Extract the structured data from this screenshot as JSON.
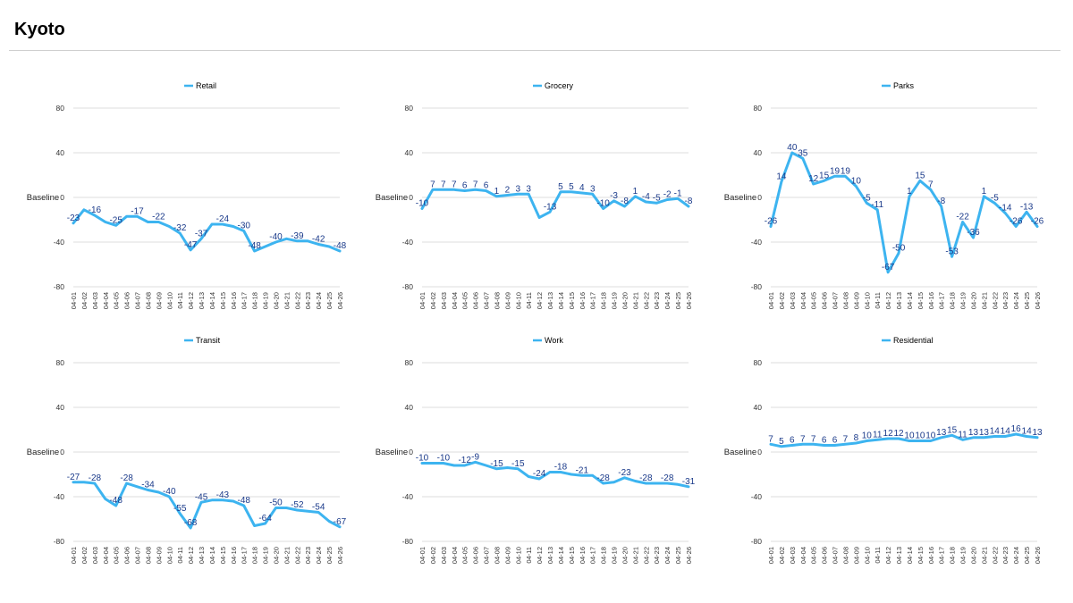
{
  "page": {
    "title": "Kyoto"
  },
  "chart_data": [
    {
      "type": "line",
      "legend": "Retail",
      "ylabel": "Baseline",
      "ylim": [
        -80,
        80
      ],
      "yticks": [
        "80",
        "40",
        "0",
        "-40",
        "-80"
      ],
      "x": [
        "04-01",
        "04-02",
        "04-03",
        "04-04",
        "04-05",
        "04-06",
        "04-07",
        "04-08",
        "04-09",
        "04-10",
        "04-11",
        "04-12",
        "04-13",
        "04-14",
        "04-15",
        "04-16",
        "04-17",
        "04-18",
        "04-19",
        "04-20",
        "04-21",
        "04-22",
        "04-23",
        "04-24",
        "04-25",
        "04-26"
      ],
      "values": [
        -23,
        -11,
        -16,
        -22,
        -25,
        -17,
        -17,
        -22,
        -22,
        -26,
        -32,
        -47,
        -37,
        -24,
        -24,
        -26,
        -30,
        -48,
        -44,
        -40,
        -37,
        -39,
        -39,
        -42,
        -44,
        -48
      ],
      "labels": [
        "-23",
        "",
        "-16",
        "",
        "-25",
        "",
        "-17",
        "",
        "-22",
        "",
        "-32",
        "-47",
        "-37",
        "",
        "-24",
        "",
        "-30",
        "-48",
        "",
        "-40",
        "",
        "-39",
        "",
        "-42",
        "",
        "-48"
      ],
      "color": "#3db4f0"
    },
    {
      "type": "line",
      "legend": "Grocery",
      "ylabel": "Baseline",
      "ylim": [
        -80,
        80
      ],
      "yticks": [
        "80",
        "40",
        "0",
        "-40",
        "-80"
      ],
      "x": [
        "04-01",
        "04-02",
        "04-03",
        "04-04",
        "04-05",
        "04-06",
        "04-07",
        "04-08",
        "04-09",
        "04-10",
        "04-11",
        "04-12",
        "04-13",
        "04-14",
        "04-15",
        "04-16",
        "04-17",
        "04-18",
        "04-19",
        "04-20",
        "04-21",
        "04-22",
        "04-23",
        "04-24",
        "04-25",
        "04-26"
      ],
      "values": [
        -10,
        7,
        7,
        7,
        6,
        7,
        6,
        1,
        2,
        3,
        3,
        -18,
        -13,
        5,
        5,
        4,
        3,
        -10,
        -3,
        -8,
        1,
        -4,
        -5,
        -2,
        -1,
        -8
      ],
      "labels": [
        "-10",
        "7",
        "7",
        "7",
        "6",
        "7",
        "6",
        "1",
        "2",
        "3",
        "3",
        "",
        "-13",
        "5",
        "5",
        "4",
        "3",
        "-10",
        "-3",
        "-8",
        "1",
        "-4",
        "-5",
        "-2",
        "-1",
        "-8"
      ],
      "color": "#3db4f0"
    },
    {
      "type": "line",
      "legend": "Parks",
      "ylabel": "Baseline",
      "ylim": [
        -80,
        80
      ],
      "yticks": [
        "80",
        "40",
        "0",
        "-40",
        "-80"
      ],
      "x": [
        "04-01",
        "04-02",
        "04-03",
        "04-04",
        "04-05",
        "04-06",
        "04-07",
        "04-08",
        "04-09",
        "04-10",
        "04-11",
        "04-12",
        "04-13",
        "04-14",
        "04-15",
        "04-16",
        "04-17",
        "04-18",
        "04-19",
        "04-20",
        "04-21",
        "04-22",
        "04-23",
        "04-24",
        "04-25",
        "04-26"
      ],
      "values": [
        -26,
        14,
        40,
        35,
        12,
        15,
        19,
        19,
        10,
        -5,
        -11,
        -67,
        -50,
        1,
        15,
        7,
        -8,
        -53,
        -22,
        -36,
        1,
        -5,
        -14,
        -26,
        -13,
        -26
      ],
      "labels": [
        "-26",
        "14",
        "40",
        "35",
        "12",
        "15",
        "19",
        "19",
        "10",
        "-5",
        "-11",
        "-67",
        "-50",
        "1",
        "15",
        "7",
        "-8",
        "-53",
        "-22",
        "-36",
        "1",
        "-5",
        "-14",
        "-26",
        "-13",
        "-26"
      ],
      "color": "#3db4f0"
    },
    {
      "type": "line",
      "legend": "Transit",
      "ylabel": "Baseline",
      "ylim": [
        -80,
        80
      ],
      "yticks": [
        "80",
        "40",
        "0",
        "-40",
        "-80"
      ],
      "x": [
        "04-01",
        "04-02",
        "04-03",
        "04-04",
        "04-05",
        "04-06",
        "04-07",
        "04-08",
        "04-09",
        "04-10",
        "04-11",
        "04-12",
        "04-13",
        "04-14",
        "04-15",
        "04-16",
        "04-17",
        "04-18",
        "04-19",
        "04-20",
        "04-21",
        "04-22",
        "04-23",
        "04-24",
        "04-25",
        "04-26"
      ],
      "values": [
        -27,
        -27,
        -28,
        -42,
        -48,
        -28,
        -31,
        -34,
        -36,
        -40,
        -55,
        -68,
        -45,
        -43,
        -43,
        -44,
        -48,
        -66,
        -64,
        -50,
        -50,
        -52,
        -53,
        -54,
        -62,
        -67
      ],
      "labels": [
        "-27",
        "",
        "-28",
        "",
        "-48",
        "-28",
        "",
        "-34",
        "",
        "-40",
        "-55",
        "-68",
        "-45",
        "",
        "-43",
        "",
        "-48",
        "",
        "-64",
        "-50",
        "",
        "-52",
        "",
        "-54",
        "",
        "-67"
      ],
      "color": "#3db4f0"
    },
    {
      "type": "line",
      "legend": "Work",
      "ylabel": "Baseline",
      "ylim": [
        -80,
        80
      ],
      "yticks": [
        "80",
        "40",
        "0",
        "-40",
        "-80"
      ],
      "x": [
        "04-01",
        "04-02",
        "04-03",
        "04-04",
        "04-05",
        "04-06",
        "04-07",
        "04-08",
        "04-09",
        "04-10",
        "04-11",
        "04-12",
        "04-13",
        "04-14",
        "04-15",
        "04-16",
        "04-17",
        "04-18",
        "04-19",
        "04-20",
        "04-21",
        "04-22",
        "04-23",
        "04-24",
        "04-25",
        "04-26"
      ],
      "values": [
        -10,
        -10,
        -10,
        -12,
        -12,
        -9,
        -12,
        -15,
        -14,
        -15,
        -22,
        -24,
        -18,
        -18,
        -20,
        -21,
        -21,
        -28,
        -27,
        -23,
        -26,
        -28,
        -28,
        -28,
        -29,
        -31
      ],
      "labels": [
        "-10",
        "",
        "-10",
        "",
        "-12",
        "-9",
        "",
        "-15",
        "",
        "-15",
        "",
        "-24",
        "",
        "-18",
        "",
        "-21",
        "",
        "-28",
        "",
        "-23",
        "",
        "-28",
        "",
        "-28",
        "",
        "-31"
      ],
      "color": "#3db4f0"
    },
    {
      "type": "line",
      "legend": "Residential",
      "ylabel": "Baseline",
      "ylim": [
        -80,
        80
      ],
      "yticks": [
        "80",
        "40",
        "0",
        "-40",
        "-80"
      ],
      "x": [
        "04-01",
        "04-02",
        "04-03",
        "04-04",
        "04-05",
        "04-06",
        "04-07",
        "04-08",
        "04-09",
        "04-10",
        "04-11",
        "04-12",
        "04-13",
        "04-14",
        "04-15",
        "04-16",
        "04-17",
        "04-18",
        "04-19",
        "04-20",
        "04-21",
        "04-22",
        "04-23",
        "04-24",
        "04-25",
        "04-26"
      ],
      "values": [
        7,
        5,
        6,
        7,
        7,
        6,
        6,
        7,
        8,
        10,
        11,
        12,
        12,
        10,
        10,
        10,
        13,
        15,
        11,
        13,
        13,
        14,
        14,
        16,
        14,
        13
      ],
      "labels": [
        "7",
        "5",
        "6",
        "7",
        "7",
        "6",
        "6",
        "7",
        "8",
        "10",
        "11",
        "12",
        "12",
        "10",
        "10",
        "10",
        "13",
        "15",
        "11",
        "13",
        "13",
        "14",
        "14",
        "16",
        "14",
        "13"
      ],
      "color": "#3db4f0"
    }
  ]
}
